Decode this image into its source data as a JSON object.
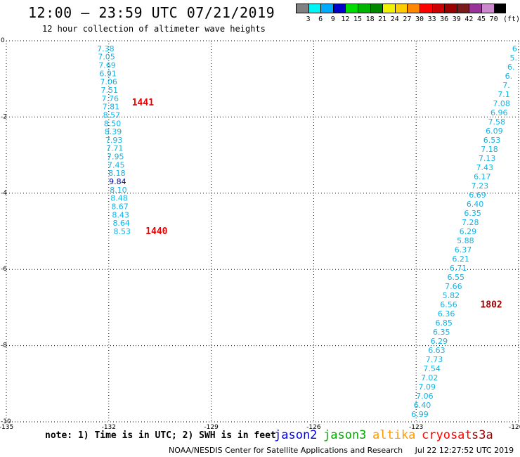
{
  "header": {
    "title": "12:00 – 23:59 UTC 07/21/2019",
    "subtitle": "12 hour collection of altimeter wave heights"
  },
  "legend": {
    "colors": [
      "#808080",
      "#00f5f5",
      "#00aaff",
      "#0000cc",
      "#00dd00",
      "#00b400",
      "#008800",
      "#f0f000",
      "#ffcc00",
      "#ff8800",
      "#ff0000",
      "#cc0000",
      "#990000",
      "#7a1a1a",
      "#993399",
      "#cc88cc",
      "#000000"
    ],
    "labels": [
      "3",
      "6",
      "9",
      "12",
      "15",
      "18",
      "21",
      "24",
      "27",
      "30",
      "33",
      "36",
      "39",
      "42",
      "45",
      "70"
    ],
    "unit": "(ft)"
  },
  "chart_data": {
    "type": "scatter",
    "xlim": [
      -135,
      -120
    ],
    "ylim": [
      -10,
      0
    ],
    "x_ticks": [
      "-135",
      "-132",
      "-129",
      "-126",
      "-123",
      "-120"
    ],
    "y_ticks": [
      "0",
      "-2",
      "-4",
      "-6",
      "-8",
      "-10"
    ],
    "grid": true,
    "track1": {
      "values": [
        "7.38",
        "7.05",
        "7.69",
        "6.91",
        "7.06",
        "7.51",
        "7.76",
        "7.81",
        "8.57",
        "8.50",
        "8.39",
        "7.93",
        "7.71",
        "7.95",
        "7.45",
        "8.18",
        "9.84",
        "8.10",
        "8.48",
        "8.67",
        "8.43",
        "8.64",
        "8.53"
      ],
      "lon_start": -132.09,
      "lon_end": -131.61,
      "lat_start": -0.2,
      "lat_end": -5.0
    },
    "track2": {
      "values": [
        "6.",
        "5.",
        "6.",
        "6.",
        "7.",
        "7.1",
        "7.08",
        "6.96",
        "7.58",
        "6.09",
        "6.53",
        "7.18",
        "7.13",
        "7.43",
        "6.17",
        "7.23",
        "6.69",
        "6.40",
        "6.35",
        "7.28",
        "6.29",
        "5.88",
        "6.37",
        "6.21",
        "6.71",
        "6.55",
        "7.66",
        "5.82",
        "6.56",
        "6.36",
        "6.85",
        "6.35",
        "6.29",
        "6.63",
        "7.73",
        "7.54",
        "7.02",
        "7.09",
        "7.06",
        "6.40",
        "6.99"
      ],
      "lon_start": -120.08,
      "lon_end": -122.89,
      "lat_start": -0.2,
      "lat_end": -9.8
    },
    "time_labels": [
      {
        "text": "1441",
        "lon": -131.0,
        "lat": -1.62
      },
      {
        "text": "1440",
        "lon": -130.6,
        "lat": -5.0
      },
      {
        "text": "1802",
        "lon": -120.8,
        "lat": -6.93
      }
    ]
  },
  "note": "note: 1) Time is in UTC; 2) SWH is in feet",
  "satellites": [
    {
      "name": "jason2",
      "color": "#0000dd"
    },
    {
      "name": "jason3",
      "color": "#00aa00"
    },
    {
      "name": "altika",
      "color": "#ff9900"
    },
    {
      "name": "cryosat",
      "color": "#ff0000"
    },
    {
      "name": "s3a",
      "color": "#990000"
    }
  ],
  "footer": {
    "center": "NOAA/NESDIS Center for Satellite Applications and Research",
    "timestamp": "Jul 22 12:27:52 UTC 2019"
  }
}
